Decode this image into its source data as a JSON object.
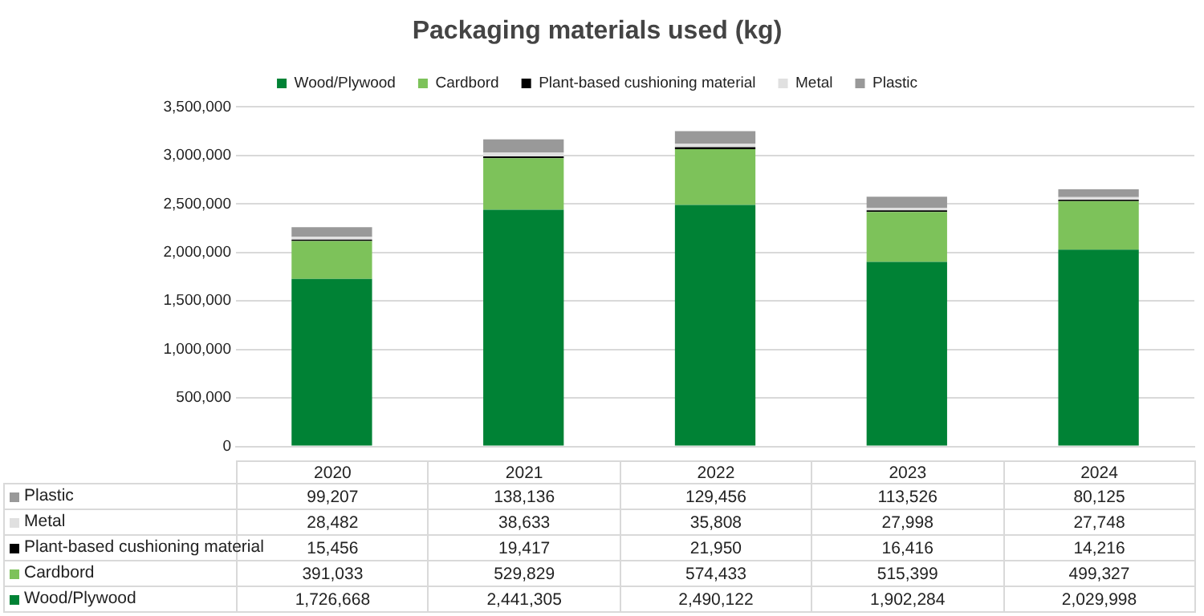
{
  "chart_data": {
    "type": "bar",
    "title": "Packaging materials used (kg)",
    "stacked": true,
    "categories": [
      "2020",
      "2021",
      "2022",
      "2023",
      "2024"
    ],
    "series": [
      {
        "name": "Wood/Plywood",
        "color": "#008235",
        "values": [
          1726668,
          2441305,
          2490122,
          1902284,
          2029998
        ],
        "value_labels": [
          "1,726,668",
          "2,441,305",
          "2,490,122",
          "1,902,284",
          "2,029,998"
        ]
      },
      {
        "name": "Cardbord",
        "color": "#7dc25a",
        "values": [
          391033,
          529829,
          574433,
          515399,
          499327
        ],
        "value_labels": [
          "391,033",
          "529,829",
          "574,433",
          "515,399",
          "499,327"
        ]
      },
      {
        "name": "Plant-based cushioning material",
        "color": "#000000",
        "values": [
          15456,
          19417,
          21950,
          16416,
          14216
        ],
        "value_labels": [
          "15,456",
          "19,417",
          "21,950",
          "16,416",
          "14,216"
        ]
      },
      {
        "name": "Metal",
        "color": "#e0e0e0",
        "values": [
          28482,
          38633,
          35808,
          27998,
          27748
        ],
        "value_labels": [
          "28,482",
          "38,633",
          "35,808",
          "27,998",
          "27,748"
        ]
      },
      {
        "name": "Plastic",
        "color": "#999999",
        "values": [
          99207,
          138136,
          129456,
          113526,
          80125
        ],
        "value_labels": [
          "99,207",
          "138,136",
          "129,456",
          "113,526",
          "80,125"
        ]
      }
    ],
    "ylim": [
      0,
      3500000
    ],
    "yticks": [
      0,
      {
        "value": 500000,
        "label": "500,000"
      },
      {
        "value": 1000000,
        "label": "1,000,000"
      },
      {
        "value": 1500000,
        "label": "1,500,000"
      },
      {
        "value": 2000000,
        "label": "2,000,000"
      },
      {
        "value": 2500000,
        "label": "2,500,000"
      },
      {
        "value": 3000000,
        "label": "3,000,000"
      },
      {
        "value": 3500000,
        "label": "3,500,000"
      }
    ],
    "grid": "y",
    "legend": "top"
  }
}
